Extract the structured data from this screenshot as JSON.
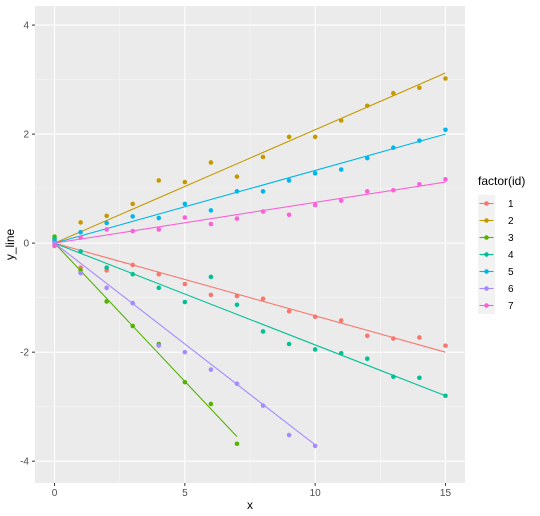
{
  "chart_data": {
    "type": "scatter",
    "xlabel": "x",
    "ylabel": "y_line",
    "xlim": [
      -0.75,
      15.75
    ],
    "ylim": [
      -4.4,
      4.35
    ],
    "x_ticks": [
      0,
      5,
      10,
      15
    ],
    "y_ticks": [
      -4,
      -2,
      0,
      2,
      4
    ],
    "x_tick_labels": [
      "0",
      "5",
      "10",
      "15"
    ],
    "y_tick_labels": [
      "-4",
      "-2",
      "0",
      "2",
      "4"
    ],
    "grid": true,
    "background": "#ebebeb",
    "legend": {
      "title": "factor(id)",
      "position": "right"
    },
    "series": [
      {
        "name": "1",
        "color": "#f8766d",
        "fit": {
          "x": [
            0,
            15
          ],
          "y": [
            0,
            -2.0
          ]
        },
        "x": [
          0,
          1,
          2,
          3,
          4,
          5,
          6,
          7,
          8,
          9,
          10,
          11,
          12,
          13,
          14,
          15
        ],
        "y": [
          0.05,
          -0.45,
          -0.5,
          -0.4,
          -0.57,
          -0.75,
          -0.95,
          -0.97,
          -1.02,
          -1.25,
          -1.35,
          -1.42,
          -1.7,
          -1.75,
          -1.73,
          -1.88
        ]
      },
      {
        "name": "2",
        "color": "#c49a00",
        "fit": {
          "x": [
            0,
            15
          ],
          "y": [
            0,
            3.12
          ]
        },
        "x": [
          0,
          1,
          2,
          3,
          4,
          5,
          6,
          7,
          8,
          9,
          10,
          11,
          12,
          13,
          14,
          15
        ],
        "y": [
          -0.05,
          0.38,
          0.5,
          0.72,
          1.15,
          1.12,
          1.48,
          1.22,
          1.58,
          1.95,
          1.95,
          2.25,
          2.52,
          2.75,
          2.85,
          3.02
        ]
      },
      {
        "name": "3",
        "color": "#53b400",
        "fit": {
          "x": [
            0,
            7
          ],
          "y": [
            0,
            -3.55
          ]
        },
        "x": [
          0,
          1,
          2,
          3,
          4,
          5,
          6,
          7
        ],
        "y": [
          0.12,
          -0.5,
          -1.07,
          -1.52,
          -1.85,
          -2.55,
          -2.95,
          -3.68
        ]
      },
      {
        "name": "4",
        "color": "#00c094",
        "fit": {
          "x": [
            0,
            15
          ],
          "y": [
            0,
            -2.8
          ]
        },
        "x": [
          0,
          1,
          2,
          3,
          4,
          5,
          6,
          7,
          8,
          9,
          10,
          11,
          12,
          13,
          14,
          15
        ],
        "y": [
          0.08,
          -0.15,
          -0.45,
          -0.57,
          -0.82,
          -1.08,
          -0.62,
          -1.13,
          -1.62,
          -1.85,
          -1.95,
          -2.02,
          -2.12,
          -2.45,
          -2.47,
          -2.8
        ]
      },
      {
        "name": "5",
        "color": "#00b6eb",
        "fit": {
          "x": [
            0,
            15
          ],
          "y": [
            0,
            2.0
          ]
        },
        "x": [
          0,
          1,
          2,
          3,
          4,
          5,
          6,
          7,
          8,
          9,
          10,
          11,
          12,
          13,
          14,
          15
        ],
        "y": [
          0.03,
          0.2,
          0.37,
          0.49,
          0.46,
          0.72,
          0.6,
          0.95,
          0.95,
          1.15,
          1.28,
          1.35,
          1.56,
          1.75,
          1.88,
          2.08
        ]
      },
      {
        "name": "6",
        "color": "#a58aff",
        "fit": {
          "x": [
            0,
            10
          ],
          "y": [
            0,
            -3.7
          ]
        },
        "x": [
          0,
          1,
          2,
          3,
          4,
          5,
          6,
          7,
          8,
          9,
          10
        ],
        "y": [
          0.0,
          -0.55,
          -0.82,
          -1.1,
          -1.88,
          -2.0,
          -2.32,
          -2.58,
          -2.98,
          -3.52,
          -3.72
        ]
      },
      {
        "name": "7",
        "color": "#fb61d7",
        "fit": {
          "x": [
            0,
            15
          ],
          "y": [
            0,
            1.12
          ]
        },
        "x": [
          0,
          1,
          2,
          3,
          4,
          5,
          6,
          7,
          8,
          9,
          10,
          11,
          12,
          13,
          14,
          15
        ],
        "y": [
          -0.05,
          0.1,
          0.25,
          0.22,
          0.25,
          0.47,
          0.35,
          0.45,
          0.58,
          0.52,
          0.7,
          0.78,
          0.95,
          0.97,
          1.08,
          1.17
        ]
      }
    ]
  }
}
